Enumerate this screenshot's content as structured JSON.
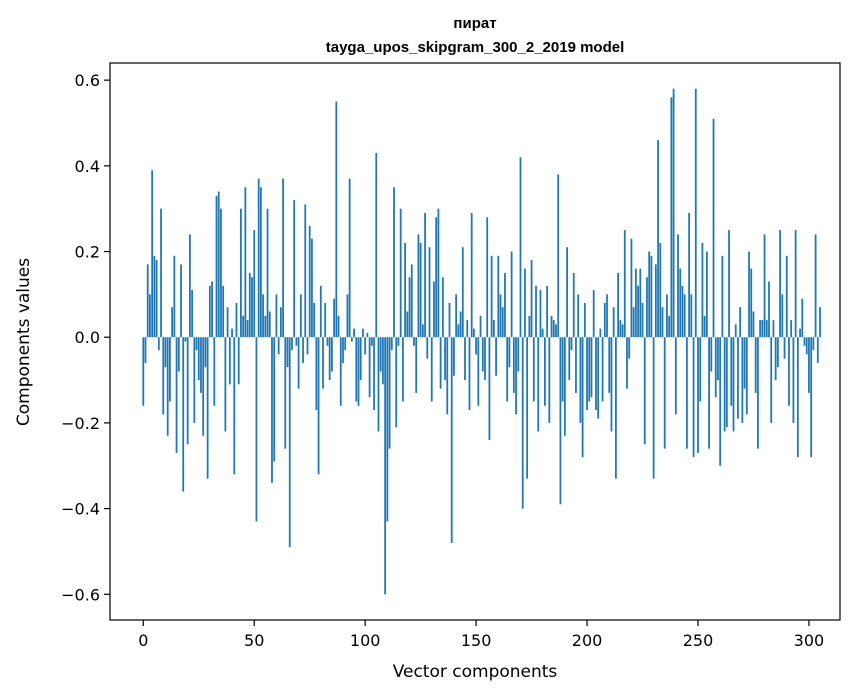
{
  "chart_data": {
    "type": "bar",
    "title_line1": "пират",
    "title_line2": "tayga_upos_skipgram_300_2_2019 model",
    "xlabel": "Vector components",
    "ylabel": "Components values",
    "xlim": [
      -15,
      314
    ],
    "ylim": [
      -0.66,
      0.64
    ],
    "x_ticks": [
      0,
      50,
      100,
      150,
      200,
      250,
      300
    ],
    "x_tick_labels": [
      "0",
      "50",
      "100",
      "150",
      "200",
      "250",
      "300"
    ],
    "y_ticks": [
      -0.6,
      -0.4,
      -0.2,
      0.0,
      0.2,
      0.4,
      0.6
    ],
    "y_tick_labels": [
      "−0.6",
      "−0.4",
      "−0.2",
      "0.0",
      "0.2",
      "0.4",
      "0.6"
    ],
    "bar_color": "#1f77b4",
    "values": [
      -0.16,
      -0.06,
      0.17,
      0.1,
      0.39,
      0.19,
      0.18,
      -0.03,
      0.3,
      -0.18,
      -0.07,
      -0.23,
      -0.15,
      0.07,
      0.19,
      -0.27,
      -0.08,
      0.17,
      -0.36,
      -0.01,
      -0.25,
      0.24,
      0.11,
      -0.2,
      -0.03,
      -0.1,
      -0.13,
      -0.23,
      -0.07,
      -0.33,
      0.12,
      0.13,
      -0.16,
      0.33,
      0.34,
      0.3,
      0.12,
      -0.22,
      0.07,
      -0.11,
      0.02,
      -0.32,
      0.08,
      -0.11,
      0.3,
      0.05,
      0.35,
      0.04,
      0.15,
      0.14,
      0.25,
      -0.43,
      0.37,
      0.35,
      0.1,
      0.05,
      0.3,
      0.06,
      -0.34,
      -0.29,
      0.1,
      -0.04,
      0.07,
      0.37,
      -0.26,
      -0.07,
      -0.49,
      -0.03,
      0.32,
      -0.02,
      -0.12,
      0.1,
      -0.06,
      0.31,
      -0.04,
      0.26,
      0.23,
      0.08,
      -0.17,
      -0.32,
      0.12,
      -0.12,
      0.08,
      -0.02,
      -0.1,
      -0.08,
      0.09,
      0.55,
      0.05,
      -0.16,
      -0.06,
      -0.03,
      0.1,
      0.37,
      -0.01,
      0.02,
      -0.15,
      -0.16,
      -0.1,
      0.02,
      -0.04,
      0.01,
      -0.14,
      -0.02,
      -0.17,
      0.43,
      -0.22,
      -0.08,
      -0.11,
      -0.6,
      -0.43,
      -0.26,
      -0.03,
      0.35,
      -0.21,
      -0.02,
      0.3,
      -0.15,
      0.22,
      0.06,
      0.14,
      0.17,
      -0.02,
      -0.13,
      0.24,
      0.22,
      0.03,
      0.29,
      -0.05,
      0.21,
      -0.15,
      0.13,
      0.28,
      0.3,
      -0.12,
      0.14,
      -0.1,
      -0.18,
      0.08,
      -0.48,
      -0.09,
      0.1,
      0.03,
      0.06,
      0.21,
      -0.1,
      0.04,
      -0.17,
      0.29,
      0.02,
      -0.04,
      -0.16,
      0.05,
      -0.08,
      -0.1,
      0.28,
      -0.24,
      0.19,
      0.04,
      -0.09,
      0.19,
      0.1,
      0.07,
      0.15,
      -0.15,
      -0.07,
      0.2,
      -0.13,
      -0.18,
      -0.08,
      0.42,
      -0.4,
      0.16,
      -0.33,
      0.05,
      0.18,
      -0.15,
      0.12,
      -0.22,
      0.11,
      0.02,
      -0.16,
      0.12,
      -0.2,
      0.05,
      0.04,
      0.03,
      0.38,
      -0.39,
      -0.15,
      -0.23,
      0.21,
      -0.1,
      -0.03,
      0.15,
      -0.13,
      0.1,
      -0.2,
      -0.28,
      0.08,
      -0.17,
      -0.15,
      -0.14,
      0.11,
      -0.17,
      -0.19,
      0.02,
      -0.15,
      0.08,
      0.1,
      -0.13,
      -0.22,
      0.07,
      -0.33,
      0.15,
      0.04,
      0.03,
      0.25,
      -0.12,
      -0.05,
      0.23,
      0.07,
      0.16,
      0.12,
      0.16,
      0.08,
      -0.25,
      0.14,
      0.2,
      0.19,
      -0.33,
      0.17,
      0.46,
      0.22,
      0.07,
      -0.26,
      0.1,
      0.05,
      0.56,
      0.58,
      -0.18,
      0.24,
      0.16,
      0.12,
      0.1,
      -0.26,
      0.29,
      0.1,
      -0.28,
      0.58,
      -0.27,
      -0.15,
      0.22,
      0.05,
      0.2,
      -0.26,
      -0.08,
      0.51,
      -0.14,
      -0.1,
      -0.3,
      0.19,
      -0.22,
      -0.21,
      0.25,
      -0.16,
      -0.22,
      0.03,
      -0.19,
      0.07,
      -0.2,
      -0.12,
      -0.18,
      0.2,
      0.16,
      0.06,
      -0.13,
      -0.26,
      0.04,
      0.04,
      0.24,
      0.04,
      0.13,
      -0.2,
      0.04,
      -0.1,
      -0.07,
      0.25,
      0.1,
      -0.05,
      0.19,
      -0.16,
      0.04,
      -0.2,
      0.25,
      -0.28,
      0.02,
      0.09,
      -0.02,
      -0.04,
      -0.13,
      -0.28,
      -0.03,
      0.24,
      -0.06,
      0.07
    ]
  }
}
